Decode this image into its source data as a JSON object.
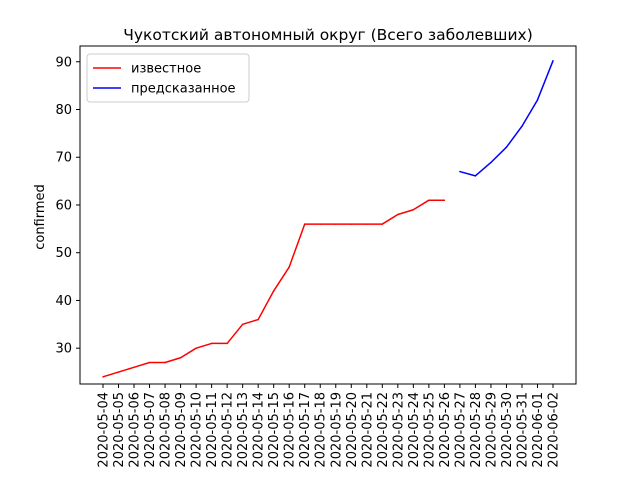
{
  "chart_data": {
    "type": "line",
    "title": "Чукотский автономный округ (Всего заболевших)",
    "xlabel": "",
    "ylabel": "confirmed",
    "ylim": [
      22.5,
      93.3
    ],
    "yticks": [
      30,
      40,
      50,
      60,
      70,
      80,
      90
    ],
    "x": [
      "2020-05-04",
      "2020-05-05",
      "2020-05-06",
      "2020-05-07",
      "2020-05-08",
      "2020-05-09",
      "2020-05-10",
      "2020-05-11",
      "2020-05-12",
      "2020-05-13",
      "2020-05-14",
      "2020-05-15",
      "2020-05-16",
      "2020-05-17",
      "2020-05-18",
      "2020-05-19",
      "2020-05-20",
      "2020-05-21",
      "2020-05-22",
      "2020-05-23",
      "2020-05-24",
      "2020-05-25",
      "2020-05-26",
      "2020-05-27",
      "2020-05-28",
      "2020-05-29",
      "2020-05-30",
      "2020-05-31",
      "2020-06-01",
      "2020-06-02"
    ],
    "legend_position": "upper-left",
    "grid": false,
    "series": [
      {
        "name": "известное",
        "color": "#ff0000",
        "x": [
          "2020-05-04",
          "2020-05-05",
          "2020-05-06",
          "2020-05-07",
          "2020-05-08",
          "2020-05-09",
          "2020-05-10",
          "2020-05-11",
          "2020-05-12",
          "2020-05-13",
          "2020-05-14",
          "2020-05-15",
          "2020-05-16",
          "2020-05-17",
          "2020-05-18",
          "2020-05-19",
          "2020-05-20",
          "2020-05-21",
          "2020-05-22",
          "2020-05-23",
          "2020-05-24",
          "2020-05-25",
          "2020-05-26"
        ],
        "values": [
          24,
          25,
          26,
          27,
          27,
          28,
          30,
          31,
          31,
          35,
          36,
          42,
          47,
          56,
          56,
          56,
          56,
          56,
          56,
          58,
          59,
          61,
          61
        ]
      },
      {
        "name": "предсказанное",
        "color": "#0000ff",
        "x": [
          "2020-05-27",
          "2020-05-28",
          "2020-05-29",
          "2020-05-30",
          "2020-05-31",
          "2020-06-01",
          "2020-06-02"
        ],
        "values": [
          67,
          66.1,
          68.9,
          72.1,
          76.5,
          82,
          90.2
        ]
      }
    ]
  }
}
